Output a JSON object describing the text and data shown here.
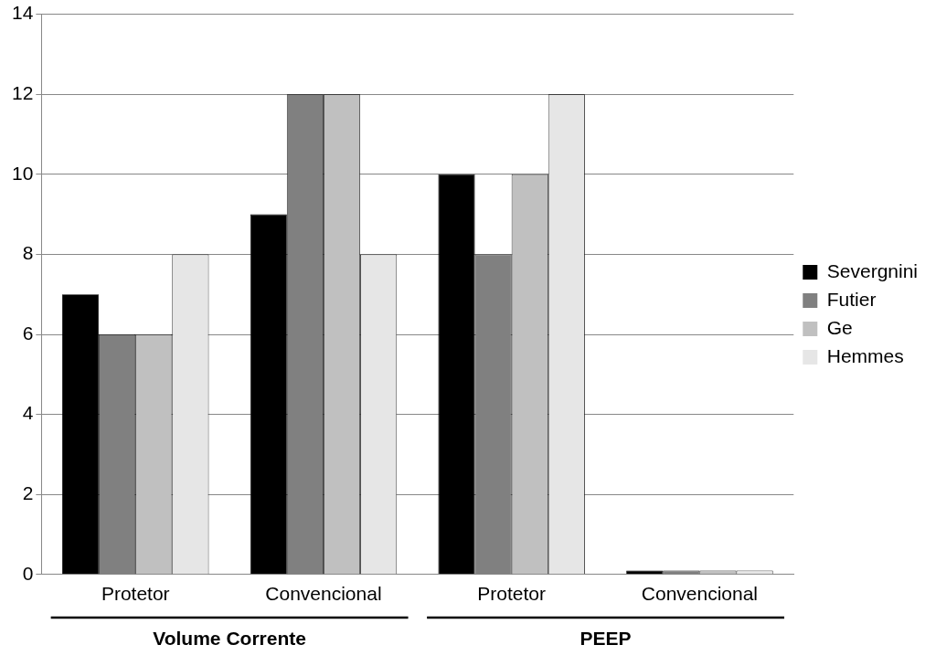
{
  "chart_data": {
    "type": "bar",
    "categories": [
      "Protetor",
      "Convencional",
      "Protetor",
      "Convencional"
    ],
    "series": [
      {
        "name": "Severgnini",
        "color": "#000000",
        "values": [
          7,
          9,
          10,
          0.1
        ]
      },
      {
        "name": "Futier",
        "color": "#808080",
        "values": [
          6,
          12,
          8,
          0.1
        ]
      },
      {
        "name": "Ge",
        "color": "#c0c0c0",
        "values": [
          6,
          12,
          10,
          0.1
        ]
      },
      {
        "name": "Hemmes",
        "color": "#e6e6e6",
        "values": [
          8,
          8,
          12,
          0.1
        ]
      }
    ],
    "ylim": [
      0,
      14
    ],
    "yticks": [
      0,
      2,
      4,
      6,
      8,
      10,
      12,
      14
    ],
    "grid": "y",
    "legend": "right",
    "annotations": [
      "Volume Corrente",
      "PEEP"
    ]
  }
}
